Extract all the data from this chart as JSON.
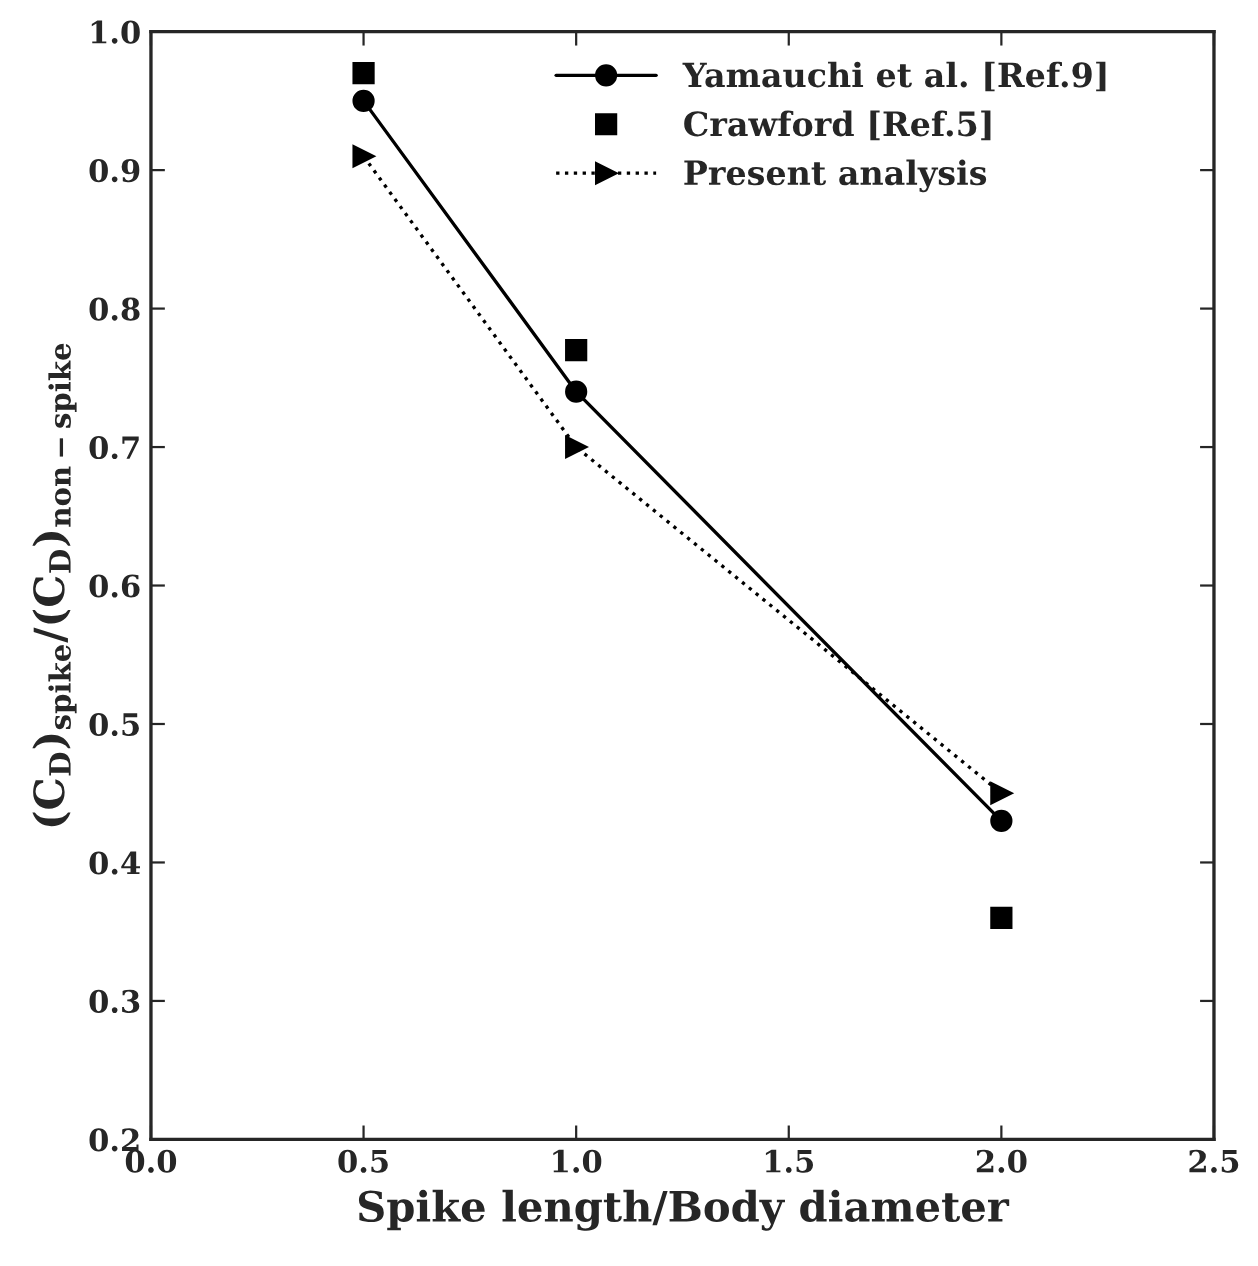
{
  "chart_data": {
    "type": "line",
    "xlabel": "Spike length/Body diameter",
    "ylabel": "(C$_{D}$)$_{spike}$/(C$_{D}$)$_{non−spike}$",
    "x": [
      0.5,
      1.0,
      2.0
    ],
    "series": [
      {
        "name": "Yamauchi et al. [Ref.9]",
        "color": "#000000",
        "values": [
          0.95,
          0.74,
          0.43
        ],
        "marker": "circle",
        "line_style": "solid"
      },
      {
        "name": "Crawford [Ref.5]",
        "type": "scatter",
        "color": "#000000",
        "values": [
          0.97,
          0.77,
          0.36
        ],
        "marker": "square"
      },
      {
        "name": "Present analysis",
        "color": "#000000",
        "values": [
          0.91,
          0.7,
          0.45
        ],
        "marker": "triangle",
        "line_style": "dotted"
      }
    ],
    "xlim": [
      0.0,
      2.5
    ],
    "xticks": [
      {
        "value": 0,
        "label": "0.0"
      },
      0.5,
      {
        "value": 1,
        "label": "1.0"
      },
      1.5,
      {
        "value": 2,
        "label": "2.0"
      },
      2.5
    ],
    "ylim": [
      0.2,
      1.0
    ],
    "yticks": [
      0.2,
      0.3,
      0.4,
      0.5,
      0.6,
      0.7,
      0.8,
      0.9,
      {
        "value": 1,
        "label": "1.0"
      }
    ],
    "legend": "top right",
    "grid": false
  }
}
